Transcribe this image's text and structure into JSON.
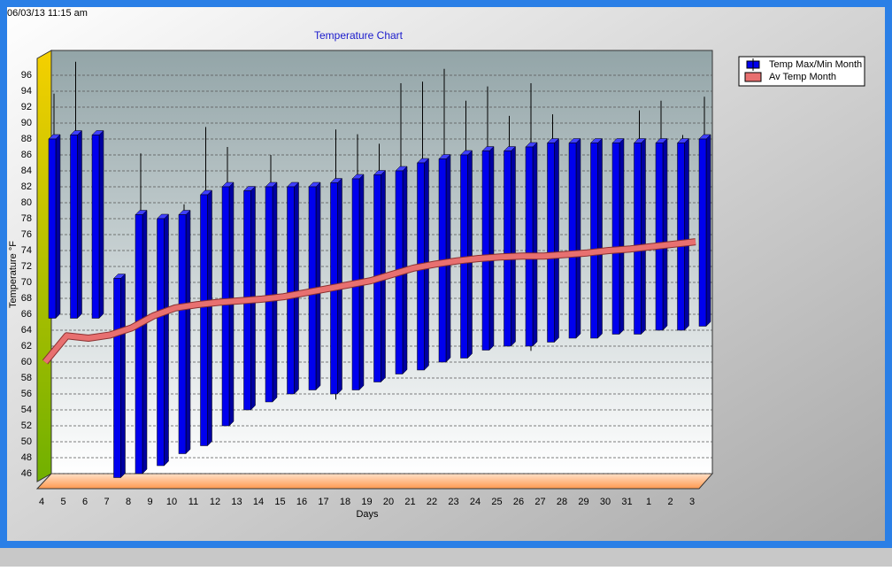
{
  "timestamp": "06/03/13 11:15 am",
  "chart_data": {
    "type": "range-bar",
    "title": "Temperature Chart",
    "x_label": "Days",
    "y_label": "Temperature °F",
    "categories": [
      "4",
      "5",
      "6",
      "7",
      "8",
      "9",
      "10",
      "11",
      "12",
      "13",
      "14",
      "15",
      "16",
      "17",
      "18",
      "19",
      "20",
      "21",
      "22",
      "23",
      "24",
      "25",
      "26",
      "27",
      "28",
      "29",
      "30",
      "31",
      "1",
      "2",
      "3"
    ],
    "ylim": [
      45,
      98
    ],
    "yticks": [
      46,
      48,
      50,
      52,
      54,
      56,
      58,
      60,
      62,
      64,
      66,
      68,
      70,
      72,
      74,
      76,
      78,
      80,
      82,
      84,
      86,
      88,
      90,
      92,
      94,
      96
    ],
    "grid": true,
    "series": [
      {
        "name": "Temp Max/Min Month",
        "type": "range-bar",
        "color": "#0000ee",
        "max": [
          88,
          88.5,
          88.5,
          70.5,
          78.5,
          78,
          78.5,
          81,
          82,
          81.5,
          82,
          82,
          82,
          82.5,
          83,
          83.5,
          84,
          85,
          85.5,
          86,
          86.5,
          86.5,
          87,
          87.5,
          87.5,
          87.5,
          87.5,
          87.5,
          87.5,
          87.5,
          88
        ],
        "min": [
          65.5,
          65.5,
          65.5,
          45.5,
          46,
          47,
          48.5,
          49.5,
          52,
          54,
          55,
          56,
          56.5,
          56,
          56.5,
          57.5,
          58.5,
          59,
          60,
          60.5,
          61.5,
          62,
          62,
          62.5,
          63,
          63,
          63.5,
          63.5,
          64,
          64,
          64.5
        ],
        "high": [
          93.7,
          97.7,
          89,
          70.5,
          86.2,
          78,
          79.8,
          89.5,
          87,
          81.5,
          86,
          82,
          82,
          89.2,
          88.6,
          87.4,
          95,
          95.2,
          96.8,
          92.8,
          94.6,
          90.9,
          95,
          91.1,
          87.5,
          87.5,
          88,
          91.6,
          92.8,
          88.5,
          93.3
        ],
        "low": [
          65.5,
          65.5,
          65.5,
          45.5,
          46,
          47,
          48.5,
          49.5,
          52,
          54,
          55,
          56,
          56.5,
          55.3,
          56.5,
          57.5,
          58.5,
          59,
          60,
          60.5,
          61.5,
          62,
          61.4,
          62.5,
          63,
          63,
          63.5,
          63.5,
          64,
          64,
          64.5
        ]
      },
      {
        "name": "Av Temp Month",
        "type": "line",
        "color": "#e87070",
        "values": [
          60,
          63.3,
          63,
          63.4,
          64.3,
          65.8,
          66.8,
          67.2,
          67.5,
          67.7,
          67.9,
          68.2,
          68.7,
          69.2,
          69.7,
          70.2,
          71,
          71.8,
          72.3,
          72.7,
          73,
          73.2,
          73.3,
          73.3,
          73.5,
          73.7,
          74,
          74.2,
          74.5,
          74.8,
          75.1
        ]
      }
    ]
  }
}
